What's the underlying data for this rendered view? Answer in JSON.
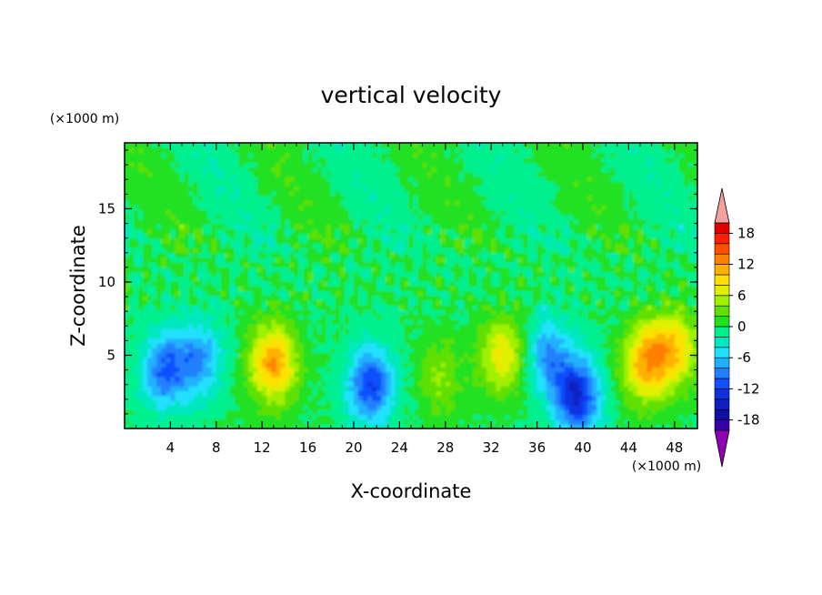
{
  "chart_data": {
    "type": "heatmap",
    "title": "vertical velocity",
    "xlabel": "X-coordinate",
    "ylabel": "Z-coordinate",
    "x_unit": "(×1000 m)",
    "y_unit": "(×1000 m)",
    "xlim": [
      0,
      50
    ],
    "ylim": [
      0,
      19.5
    ],
    "x_ticks": [
      4,
      8,
      12,
      16,
      20,
      24,
      28,
      32,
      36,
      40,
      44,
      48
    ],
    "y_ticks": [
      5,
      10,
      15
    ],
    "colorbar": {
      "levels": [
        -20,
        -18,
        -16,
        -14,
        -12,
        -10,
        -8,
        -6,
        -4,
        -2,
        0,
        2,
        4,
        6,
        8,
        10,
        12,
        14,
        16,
        18,
        20
      ],
      "colors": [
        "#3a00a8",
        "#1010a0",
        "#1020c0",
        "#1030e0",
        "#1050ff",
        "#2080ff",
        "#20b0ff",
        "#20e0ff",
        "#00e8c0",
        "#00f090",
        "#20e020",
        "#60e000",
        "#a0f000",
        "#e0f000",
        "#ffe000",
        "#ffb000",
        "#ff8000",
        "#ff5000",
        "#ff2000",
        "#e00000"
      ],
      "tick_labels": [
        "18",
        "12",
        "6",
        "0",
        "-6",
        "-12",
        "-18"
      ],
      "tick_values": [
        18,
        12,
        6,
        0,
        -6,
        -12,
        -18
      ],
      "extend_high_color": "#f4a0a0",
      "extend_low_color": "#9000b0"
    },
    "features": [
      {
        "x": 3.5,
        "z": 4.0,
        "w": -10
      },
      {
        "x": 6.5,
        "z": 4.8,
        "w": -8
      },
      {
        "x": 13.0,
        "z": 4.5,
        "w": 12
      },
      {
        "x": 21.5,
        "z": 3.0,
        "w": -12
      },
      {
        "x": 27.5,
        "z": 3.5,
        "w": 4
      },
      {
        "x": 33.0,
        "z": 5.0,
        "w": 8
      },
      {
        "x": 37.0,
        "z": 5.0,
        "w": -8
      },
      {
        "x": 39.5,
        "z": 2.2,
        "w": -14
      },
      {
        "x": 45.5,
        "z": 4.5,
        "w": 11
      },
      {
        "x": 48.0,
        "z": 5.5,
        "w": 9
      }
    ]
  }
}
